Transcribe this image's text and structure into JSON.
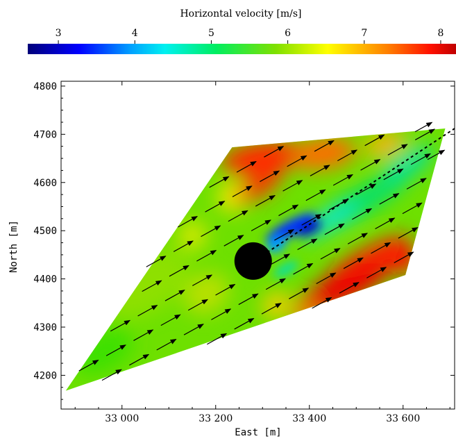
{
  "chart_data": {
    "type": "heatmap",
    "title": "",
    "colorbar": {
      "title": "Horizontal velocity [m/s]",
      "ticks": [
        3,
        4,
        5,
        6,
        7,
        8
      ],
      "range": [
        2.6,
        8.2
      ],
      "placement": "top",
      "colormap": "rainbow"
    },
    "xlabel": "East [m]",
    "ylabel": "North [m]",
    "xlim": [
      32870,
      33710
    ],
    "ylim": [
      4130,
      4810
    ],
    "xticks": [
      33000,
      33200,
      33400,
      33600
    ],
    "xtick_labels": [
      "33 000",
      "33 200",
      "33 400",
      "33 600"
    ],
    "yticks": [
      4200,
      4300,
      4400,
      4500,
      4600,
      4700,
      4800
    ],
    "ytick_labels": [
      "4200",
      "4300",
      "4400",
      "4500",
      "4600",
      "4700",
      "4800"
    ],
    "domain_polygon": [
      [
        32880,
        4168
      ],
      [
        33235,
        4673
      ],
      [
        33690,
        4712
      ],
      [
        33605,
        4408
      ]
    ],
    "obstacle": {
      "x": 33280,
      "y": 4437,
      "radius": 22
    },
    "wind_direction_deg": 29,
    "centerline": [
      [
        33310,
        4455
      ],
      [
        33710,
        4712
      ]
    ],
    "arrow_grid": {
      "direction_deg": 29,
      "along_spacing": 45,
      "across_spacing": 28
    }
  }
}
